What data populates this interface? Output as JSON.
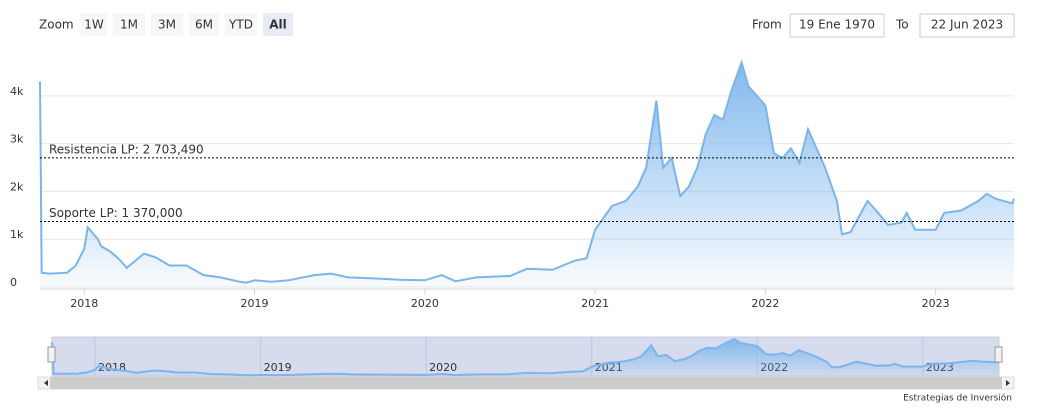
{
  "range_selector": {
    "zoom_label": "Zoom",
    "buttons": [
      "1W",
      "1M",
      "3M",
      "6M",
      "YTD",
      "All"
    ],
    "selected": 5,
    "from_label": "From",
    "from": "19 Ene 1970",
    "to_label": "To",
    "to": "22 Jun 2023"
  },
  "chart_data": {
    "type": "area",
    "color": "#7cb5ec",
    "x": [
      2017.74,
      2017.75,
      2017.8,
      2017.9,
      2017.95,
      2018.0,
      2018.02,
      2018.08,
      2018.1,
      2018.15,
      2018.2,
      2018.25,
      2018.3,
      2018.35,
      2018.42,
      2018.5,
      2018.6,
      2018.7,
      2018.8,
      2018.9,
      2018.95,
      2019.0,
      2019.1,
      2019.2,
      2019.35,
      2019.45,
      2019.55,
      2019.7,
      2019.85,
      2020.0,
      2020.1,
      2020.18,
      2020.3,
      2020.5,
      2020.6,
      2020.75,
      2020.88,
      2020.95,
      2021.0,
      2021.1,
      2021.18,
      2021.25,
      2021.3,
      2021.36,
      2021.4,
      2021.45,
      2021.5,
      2021.55,
      2021.6,
      2021.65,
      2021.7,
      2021.75,
      2021.8,
      2021.86,
      2021.9,
      2022.0,
      2022.05,
      2022.1,
      2022.15,
      2022.2,
      2022.25,
      2022.3,
      2022.35,
      2022.42,
      2022.45,
      2022.5,
      2022.6,
      2022.65,
      2022.72,
      2022.8,
      2022.83,
      2022.88,
      2023.0,
      2023.05,
      2023.15,
      2023.25,
      2023.3,
      2023.35,
      2023.45,
      2023.46
    ],
    "values": [
      4300,
      300,
      280,
      300,
      450,
      800,
      1250,
      1000,
      850,
      750,
      600,
      400,
      550,
      700,
      620,
      450,
      450,
      250,
      200,
      120,
      90,
      140,
      110,
      140,
      250,
      280,
      200,
      180,
      150,
      140,
      250,
      120,
      200,
      230,
      380,
      360,
      550,
      600,
      1200,
      1700,
      1800,
      2100,
      2500,
      3900,
      2500,
      2700,
      1900,
      2100,
      2500,
      3200,
      3600,
      3500,
      4100,
      4700,
      4200,
      3800,
      2800,
      2700,
      2900,
      2600,
      3300,
      2900,
      2500,
      1800,
      1100,
      1150,
      1800,
      1600,
      1300,
      1350,
      1550,
      1200,
      1200,
      1550,
      1600,
      1800,
      1950,
      1850,
      1750,
      1850
    ],
    "xlim": [
      2017.74,
      2023.46
    ],
    "xticks": [
      2018,
      2019,
      2020,
      2021,
      2022,
      2023
    ],
    "ylim": [
      0,
      4960
    ],
    "yticks": [
      0,
      {
        "value": 1000,
        "label": "1k"
      },
      {
        "value": 2000,
        "label": "2k"
      },
      {
        "value": 3000,
        "label": "3k"
      },
      {
        "value": 4000,
        "label": "4k"
      }
    ],
    "grid": true,
    "plot_lines": [
      {
        "value": 2703.49,
        "label": "Resistencia LP: 2 703,490"
      },
      {
        "value": 1370,
        "label": "Soporte LP: 1 370,000"
      }
    ]
  },
  "credits": "Estrategias de Inversión"
}
